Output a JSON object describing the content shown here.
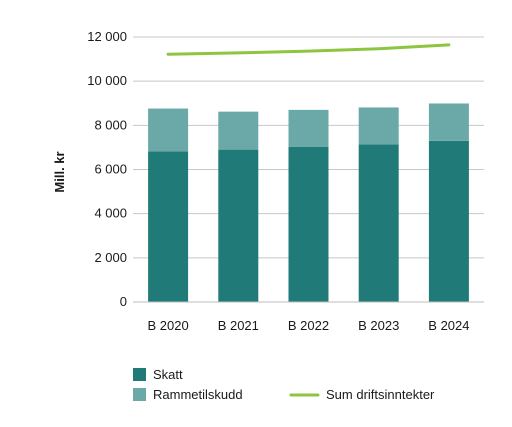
{
  "chart_data": {
    "type": "bar",
    "stacked": true,
    "categories": [
      "B 2020",
      "B 2021",
      "B 2022",
      "B 2023",
      "B 2024"
    ],
    "series": [
      {
        "name": "Skatt",
        "kind": "bar",
        "color": "#1f7a78",
        "values": [
          6820,
          6900,
          7020,
          7130,
          7300
        ]
      },
      {
        "name": "Rammetilskudd",
        "kind": "bar",
        "color": "#6aa9a7",
        "values": [
          1940,
          1720,
          1680,
          1680,
          1690
        ]
      },
      {
        "name": "Sum driftsinntekter",
        "kind": "line",
        "color": "#8cc63f",
        "values": [
          11220,
          11280,
          11360,
          11470,
          11640
        ]
      }
    ],
    "ylabel": "Mill. kr",
    "ylim": [
      0,
      12000
    ],
    "yticks": [
      0,
      2000,
      4000,
      6000,
      8000,
      10000,
      12000
    ],
    "ytick_labels": [
      "0",
      "2 000",
      "4 000",
      "6 000",
      "8 000",
      "10 000",
      "12 000"
    ],
    "grid": true,
    "legend_position": "bottom"
  }
}
